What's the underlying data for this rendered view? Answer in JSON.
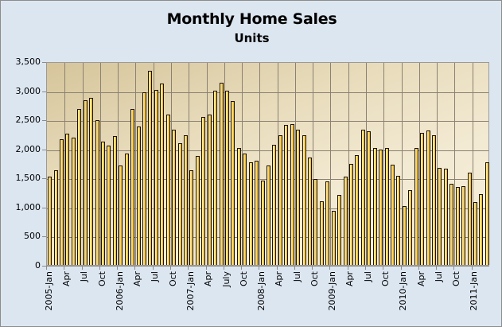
{
  "chart_data": {
    "type": "bar",
    "title": "Monthly Home Sales",
    "subtitle": "Units",
    "xlabel": "",
    "ylabel": "",
    "ylim": [
      0,
      3500
    ],
    "yticks": [
      "0",
      "500",
      "1,000",
      "1,500",
      "2,000",
      "2,500",
      "3,000",
      "3,500"
    ],
    "ytick_values": [
      0,
      500,
      1000,
      1500,
      2000,
      2500,
      3000,
      3500
    ],
    "grid": true,
    "legend": null,
    "xtick_labels": [
      "2005-Jan",
      "Apr",
      "Jul",
      "Oct",
      "2006-Jan",
      "Apr",
      "Jul",
      "Oct",
      "2007-Jan",
      "Apr",
      "July",
      "Oct",
      "2008-Jan",
      "Apr",
      "Jul",
      "Oct",
      "2009-Jan",
      "Apr",
      "Jul",
      "Oct",
      "2010-Jan",
      "Apr",
      "Jul",
      "Oct",
      "2011-Jan"
    ],
    "categories": [
      "2005-01",
      "2005-02",
      "2005-03",
      "2005-04",
      "2005-05",
      "2005-06",
      "2005-07",
      "2005-08",
      "2005-09",
      "2005-10",
      "2005-11",
      "2005-12",
      "2006-01",
      "2006-02",
      "2006-03",
      "2006-04",
      "2006-05",
      "2006-06",
      "2006-07",
      "2006-08",
      "2006-09",
      "2006-10",
      "2006-11",
      "2006-12",
      "2007-01",
      "2007-02",
      "2007-03",
      "2007-04",
      "2007-05",
      "2007-06",
      "2007-07",
      "2007-08",
      "2007-09",
      "2007-10",
      "2007-11",
      "2007-12",
      "2008-01",
      "2008-02",
      "2008-03",
      "2008-04",
      "2008-05",
      "2008-06",
      "2008-07",
      "2008-08",
      "2008-09",
      "2008-10",
      "2008-11",
      "2008-12",
      "2009-01",
      "2009-02",
      "2009-03",
      "2009-04",
      "2009-05",
      "2009-06",
      "2009-07",
      "2009-08",
      "2009-09",
      "2009-10",
      "2009-11",
      "2009-12",
      "2010-01",
      "2010-02",
      "2010-03",
      "2010-04",
      "2010-05",
      "2010-06",
      "2010-07",
      "2010-08",
      "2010-09",
      "2010-10",
      "2010-11",
      "2010-12",
      "2011-01",
      "2011-02",
      "2011-03"
    ],
    "values": [
      1500,
      1620,
      2150,
      2240,
      2170,
      2660,
      2820,
      2860,
      2480,
      2110,
      2040,
      2200,
      1690,
      1900,
      2660,
      2360,
      2950,
      3320,
      3000,
      3100,
      2570,
      2310,
      2080,
      2220,
      1620,
      1860,
      2530,
      2570,
      2980,
      3120,
      2980,
      2800,
      1990,
      1900,
      1750,
      1780,
      1440,
      1700,
      2050,
      2220,
      2390,
      2410,
      2310,
      2220,
      1830,
      1460,
      1080,
      1420,
      910,
      1190,
      1510,
      1720,
      1880,
      2310,
      2290,
      2000,
      1970,
      1990,
      1710,
      1520,
      1000,
      1270,
      2000,
      2260,
      2300,
      2220,
      1660,
      1640,
      1380,
      1330,
      1340,
      1570,
      1060,
      1210,
      1750
    ],
    "colors": {
      "bar_fill": "#f9cf52",
      "bar_outline": "#1a1204",
      "plot_bg_top": "#d6c59b",
      "plot_bg_bottom": "#f6eedb",
      "chart_bg": "#dce6f1",
      "grid": "#8a8172"
    }
  }
}
